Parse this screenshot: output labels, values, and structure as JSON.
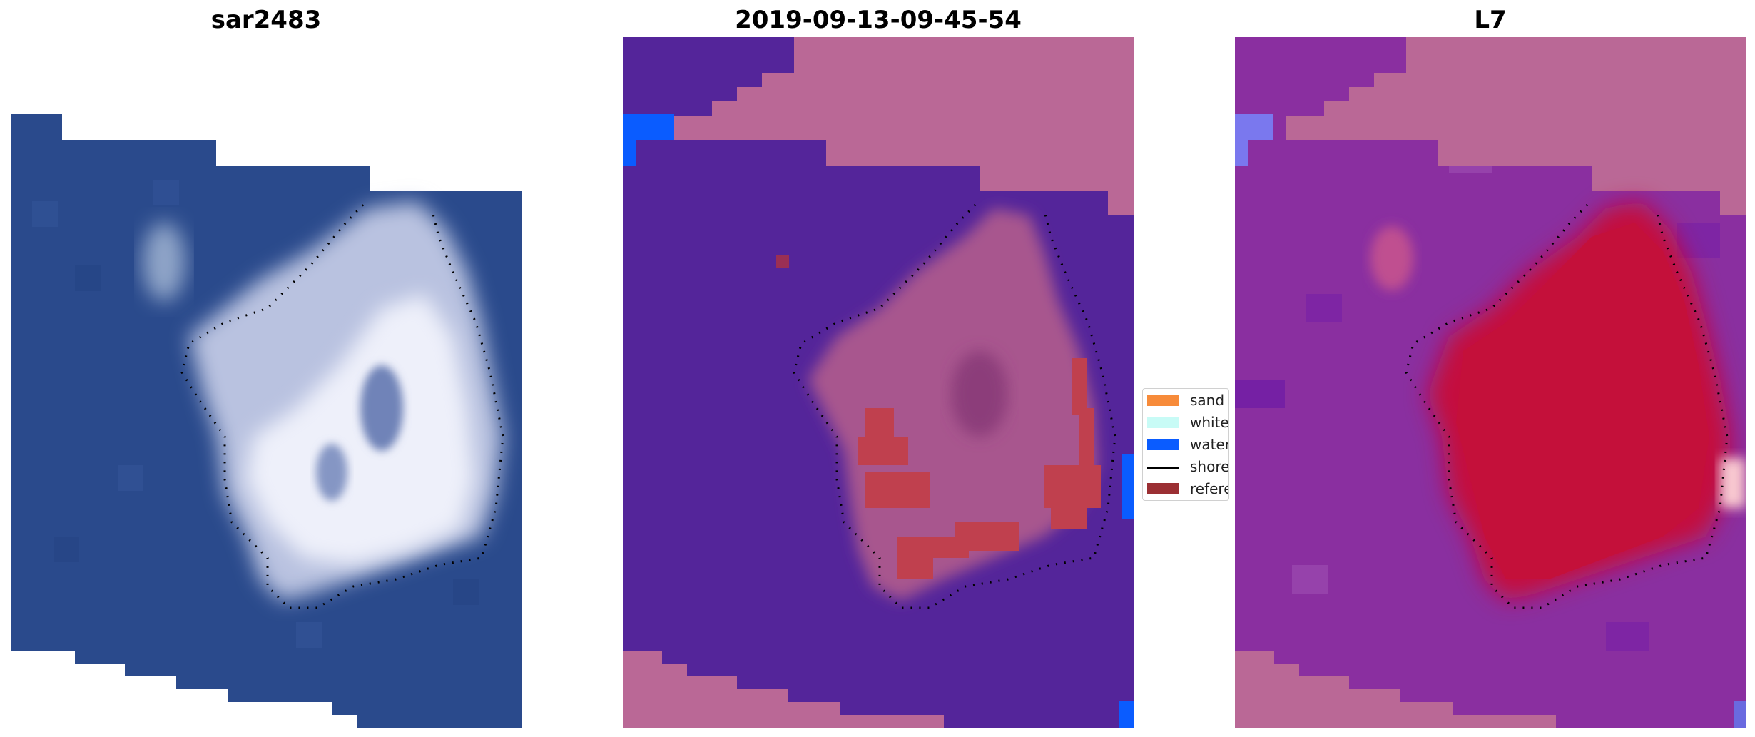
{
  "figure": {
    "panels": [
      {
        "title": "sar2483"
      },
      {
        "title": "2019-09-13-09-45-54"
      },
      {
        "title": "L7"
      }
    ],
    "legend": {
      "items": [
        {
          "label": "sand",
          "color": "#f78b3a",
          "type": "patch"
        },
        {
          "label": "whitewater",
          "color": "#c8fbf6",
          "type": "patch"
        },
        {
          "label": "water",
          "color": "#0a5cff",
          "type": "patch"
        },
        {
          "label": "shoreline",
          "color": "#000000",
          "type": "line"
        },
        {
          "label": "reference",
          "color": "#9b2f33",
          "type": "patch"
        }
      ]
    },
    "colors": {
      "satellite_water": "#2a4a8c",
      "satellite_land": "#d8dcef",
      "classified_water": "#54259a",
      "classified_nodata": "#ba6896",
      "classified_land": "#a04a86",
      "classified_reference": "#c0404e",
      "classified_blue": "#0a5cff",
      "index_bg": "#8a2fa0",
      "index_land": "#c5103e",
      "index_nodata": "#ba6896"
    }
  }
}
